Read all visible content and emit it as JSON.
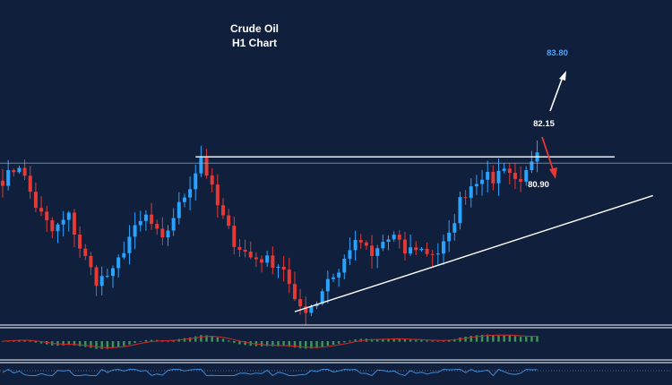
{
  "colors": {
    "background": "#0f1f3c",
    "bull_candle": "#29a3ff",
    "bear_candle": "#e53935",
    "trendline": "#ffffff",
    "target_up": "#4da3ff",
    "target_down": "#ffffff",
    "arrow_down": "#e53935",
    "arrow_up": "#ffffff",
    "histogram_pos": "#3da957",
    "histogram_neg": "#3da957",
    "signal_line": "#c62828",
    "oscillator_line": "#3b8bd9"
  },
  "chart_data": {
    "type": "candlestick",
    "title": "Crude Oil",
    "subtitle": "H1 Chart",
    "xlabel": "",
    "ylabel": "",
    "ylim": [
      79.0,
      84.5
    ],
    "price_keypoints": [
      [
        0,
        81.6
      ],
      [
        3,
        81.9
      ],
      [
        6,
        81.1
      ],
      [
        9,
        80.6
      ],
      [
        12,
        80.9
      ],
      [
        14,
        80.3
      ],
      [
        17,
        79.65
      ],
      [
        20,
        79.8
      ],
      [
        23,
        80.5
      ],
      [
        26,
        80.9
      ],
      [
        29,
        80.4
      ],
      [
        31,
        80.9
      ],
      [
        34,
        81.5
      ],
      [
        36,
        82.05
      ],
      [
        39,
        81.1
      ],
      [
        42,
        80.4
      ],
      [
        45,
        80.1
      ],
      [
        48,
        80.05
      ],
      [
        51,
        79.9
      ],
      [
        53,
        79.2
      ],
      [
        55,
        79.1
      ],
      [
        57,
        79.25
      ],
      [
        59,
        79.7
      ],
      [
        61,
        79.8
      ],
      [
        63,
        80.3
      ],
      [
        65,
        80.4
      ],
      [
        67,
        80.1
      ],
      [
        69,
        80.4
      ],
      [
        71,
        80.5
      ],
      [
        73,
        80.2
      ],
      [
        75,
        80.3
      ],
      [
        77,
        80.2
      ],
      [
        79,
        80.2
      ],
      [
        81,
        80.5
      ],
      [
        83,
        81.2
      ],
      [
        85,
        81.5
      ],
      [
        87,
        81.7
      ],
      [
        89,
        81.6
      ],
      [
        91,
        81.9
      ],
      [
        93,
        81.6
      ],
      [
        95,
        81.7
      ],
      [
        97,
        82.05
      ]
    ],
    "levels": [
      {
        "label": "83.80",
        "type": "target",
        "value": 83.8
      },
      {
        "label": "82.15",
        "type": "resistance",
        "value": 82.15
      },
      {
        "label": "80.90",
        "type": "target",
        "value": 80.9
      }
    ],
    "resistance_line": {
      "value": 82.05
    },
    "ascending_trendline": {
      "from": [
        53,
        79.05
      ],
      "to": [
        118,
        81.3
      ]
    },
    "grid": false,
    "legend": "none"
  }
}
